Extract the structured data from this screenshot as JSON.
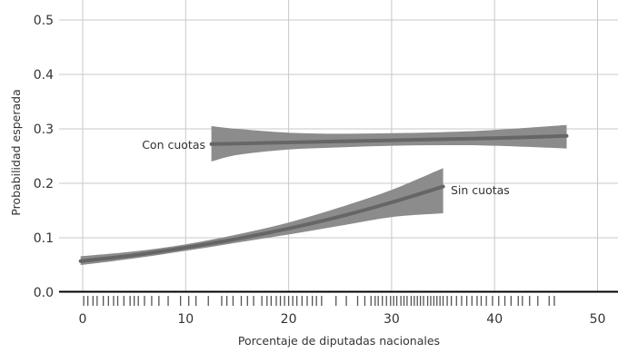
{
  "chart_data": {
    "type": "line",
    "xlabel": "Porcentaje de diputadas nacionales",
    "ylabel": "Probabilidad esperada",
    "xlim": [
      -2,
      51
    ],
    "ylim": [
      0,
      0.52
    ],
    "x_ticks": [
      0,
      10,
      20,
      30,
      40,
      50
    ],
    "y_ticks": [
      0.0,
      0.1,
      0.2,
      0.3,
      0.4,
      0.5
    ],
    "x_tick_labels": [
      "0",
      "10",
      "20",
      "30",
      "40",
      "50"
    ],
    "y_tick_labels": [
      "0.0",
      "0.1",
      "0.2",
      "0.3",
      "0.4",
      "0.5"
    ],
    "grid": true,
    "rug": true,
    "series": [
      {
        "name": "Con cuotas",
        "color": "#666666",
        "band_color": "#8c8c8c",
        "x": [
          12.5,
          15,
          20,
          25,
          30,
          35,
          40,
          47
        ],
        "y": [
          0.272,
          0.273,
          0.275,
          0.277,
          0.279,
          0.281,
          0.283,
          0.287
        ],
        "lower": [
          0.24,
          0.252,
          0.262,
          0.266,
          0.269,
          0.27,
          0.269,
          0.264
        ],
        "upper": [
          0.305,
          0.3,
          0.293,
          0.291,
          0.292,
          0.294,
          0.298,
          0.307
        ]
      },
      {
        "name": "Sin cuotas",
        "color": "#666666",
        "band_color": "#8c8c8c",
        "x": [
          -0.2,
          5,
          10,
          15,
          20,
          25,
          30,
          35
        ],
        "y": [
          0.057,
          0.068,
          0.082,
          0.098,
          0.117,
          0.139,
          0.165,
          0.194
        ],
        "lower": [
          0.05,
          0.062,
          0.076,
          0.091,
          0.106,
          0.122,
          0.138,
          0.145
        ],
        "upper": [
          0.066,
          0.075,
          0.088,
          0.106,
          0.128,
          0.156,
          0.188,
          0.228
        ]
      }
    ],
    "rug_x": [
      0.1,
      0.5,
      1,
      1.4,
      2,
      2.5,
      3,
      3.4,
      4,
      4.6,
      5,
      5.4,
      6,
      6.7,
      7.4,
      8.3,
      9.5,
      10.3,
      11,
      12.2,
      13.5,
      14,
      14.6,
      15.4,
      16,
      16.6,
      17.4,
      17.9,
      18.3,
      18.8,
      19.2,
      19.6,
      20,
      20.4,
      20.8,
      21.3,
      21.8,
      22.3,
      22.7,
      23.2,
      24.6,
      25.6,
      26.7,
      27.4,
      28,
      28.4,
      28.7,
      29.1,
      29.5,
      29.9,
      30.2,
      30.5,
      30.9,
      31.2,
      31.5,
      31.9,
      32.2,
      32.5,
      32.8,
      33.1,
      33.5,
      33.8,
      34.1,
      34.4,
      34.7,
      35,
      35.4,
      35.8,
      36.3,
      36.8,
      37.3,
      37.8,
      38.3,
      38.7,
      39.2,
      39.8,
      40.4,
      41,
      41.6,
      42.3,
      42.7,
      43.4,
      44.2,
      45.3,
      45.8
    ],
    "annotations": [
      "Con cuotas",
      "Sin cuotas"
    ]
  }
}
